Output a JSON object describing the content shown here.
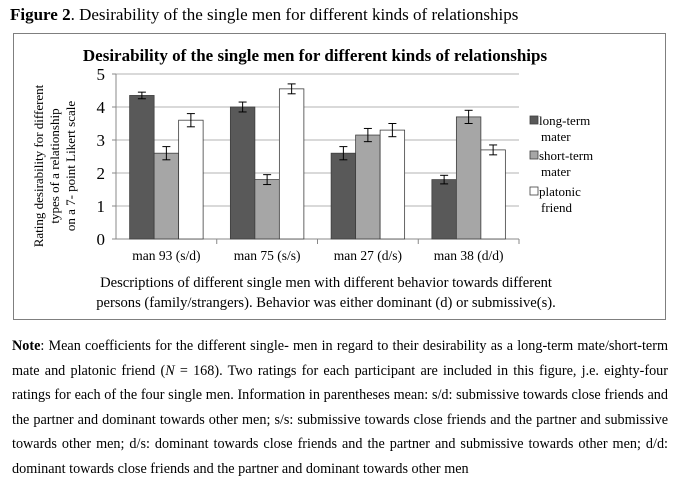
{
  "figure_label": "Figure 2",
  "figure_caption": ". Desirability of the single men for different kinds of relationships",
  "chart_data": {
    "type": "bar",
    "title": "Desirability of the single men for different kinds of relationships",
    "ylabel_lines": [
      "Rating desirability for different",
      "types of a relationship",
      "on a 7- point Likert scale"
    ],
    "xlabel_lines": [
      "Descriptions of different single men with different behavior towards different",
      "persons (family/strangers). Behavior was either dominant (d) or submissive(s)."
    ],
    "categories": [
      "man 93 (s/d)",
      "man 75 (s/s)",
      "man 27 (d/s)",
      "man 38 (d/d)"
    ],
    "ylim": [
      0,
      5
    ],
    "yticks": [
      0,
      1,
      2,
      3,
      4,
      5
    ],
    "grid": true,
    "legend_position": "right",
    "series": [
      {
        "name": "long-term mater",
        "legend_lines": [
          "long-term",
          "mater"
        ],
        "color": "#595959",
        "values": [
          4.35,
          4.0,
          2.6,
          1.8
        ],
        "errors": [
          0.1,
          0.15,
          0.2,
          0.13
        ]
      },
      {
        "name": "short-term mater",
        "legend_lines": [
          "short-term",
          "mater"
        ],
        "color": "#a6a6a6",
        "values": [
          2.6,
          1.8,
          3.15,
          3.7
        ],
        "errors": [
          0.2,
          0.15,
          0.2,
          0.2
        ]
      },
      {
        "name": "platonic friend",
        "legend_lines": [
          "platonic",
          "friend"
        ],
        "color": "#ffffff",
        "values": [
          3.6,
          4.55,
          3.3,
          2.7
        ],
        "errors": [
          0.2,
          0.15,
          0.2,
          0.15
        ]
      }
    ]
  },
  "note": {
    "label": "Note",
    "t1": ": Mean coefficients for the different single- men in regard to their desirability as a long-term mate/short-term mate and platonic friend (",
    "n_symbol": "N",
    "t2": " = 168). Two ratings for each participant are included in this figure, j.e. eighty-four ratings for each of the four single men. Information in parentheses mean: s/d: submissive towards close friends and the partner and dominant towards other men; s/s: submissive towards close friends and the partner and submissive towards other men; d/s: dominant towards close friends and the partner and submissive towards other men; d/d: dominant towards close friends and the partner and dominant towards other men"
  }
}
